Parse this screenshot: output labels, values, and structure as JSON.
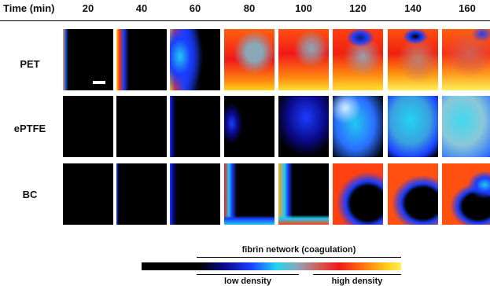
{
  "header": {
    "title": "Time (min)",
    "times": [
      "20",
      "40",
      "60",
      "80",
      "100",
      "120",
      "140",
      "160"
    ]
  },
  "rows": [
    {
      "label": "PET"
    },
    {
      "label": "ePTFE"
    },
    {
      "label": "BC"
    }
  ],
  "legend": {
    "fibrin_label": "fibrin network (coagulation)",
    "low_label": "low density",
    "high_label": "high density"
  },
  "colors": {
    "background": "#ffffff",
    "tile_background": "#000000",
    "cmap": [
      "#000000",
      "#0a0a8a",
      "#1a3dff",
      "#22d4f0",
      "#8aa8b8",
      "#f01818",
      "#ff7a10",
      "#ffd21a",
      "#fff05a"
    ]
  }
}
